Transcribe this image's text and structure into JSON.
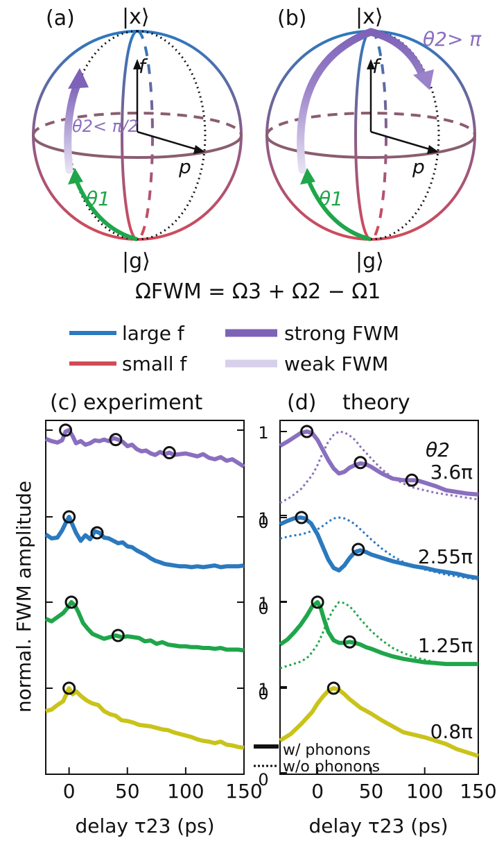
{
  "panels": {
    "a": {
      "label": "(a)",
      "top_state": "|x⟩",
      "bottom_state": "|g⟩",
      "axis_f": "f",
      "axis_p": "p",
      "theta1": "θ1",
      "theta2": "θ2< π/2"
    },
    "b": {
      "label": "(b)",
      "top_state": "|x⟩",
      "bottom_state": "|g⟩",
      "axis_f": "f",
      "axis_p": "p",
      "theta1": "θ1",
      "theta2": "θ2> π"
    },
    "c": {
      "label": "(c)",
      "title": "experiment"
    },
    "d": {
      "label": "(d)",
      "title": "theory"
    }
  },
  "equation": "ΩFWM = Ω3 + Ω2 − Ω1",
  "legend": {
    "large_f": "large f",
    "small_f": "small f",
    "strong": "strong FWM",
    "weak": "weak FWM",
    "with_phonons": "w/ phonons",
    "without_phonons": "w/o phonons",
    "theta2_header": "θ2"
  },
  "colors": {
    "blue": "#2b79bf",
    "red": "#d24a58",
    "purple": "#8a6fbf",
    "purple_light": "#cfc6e6",
    "green": "#1fa64a",
    "yellow": "#c9c31a",
    "axis": "#1a1a1a"
  },
  "chart_data": [
    {
      "type": "line",
      "panel": "c",
      "title": "experiment",
      "xlabel": "delay τ23 (ps)",
      "ylabel": "normal. FWM amplitude",
      "xlim": [
        -20,
        150
      ],
      "xticks": [
        "0",
        "50",
        "100",
        "150"
      ],
      "series": [
        {
          "color": "#8a6fbf",
          "x": [
            -20,
            -15,
            -10,
            -6,
            -3,
            0,
            3,
            6,
            10,
            14,
            18,
            22,
            26,
            30,
            34,
            38,
            42,
            46,
            50,
            54,
            58,
            62,
            66,
            70,
            74,
            78,
            82,
            86,
            90,
            95,
            100,
            105,
            110,
            115,
            120,
            125,
            130,
            135,
            140,
            145,
            150
          ],
          "y": [
            0.88,
            0.85,
            0.83,
            0.86,
            0.98,
            1.0,
            0.92,
            0.82,
            0.85,
            0.8,
            0.82,
            0.86,
            0.85,
            0.87,
            0.85,
            0.89,
            0.87,
            0.84,
            0.78,
            0.8,
            0.74,
            0.71,
            0.72,
            0.68,
            0.66,
            0.7,
            0.67,
            0.69,
            0.66,
            0.67,
            0.68,
            0.66,
            0.64,
            0.67,
            0.62,
            0.6,
            0.63,
            0.58,
            0.6,
            0.55,
            0.5
          ],
          "markers": [
            [
              -3,
              1.0
            ],
            [
              40,
              0.87
            ],
            [
              86,
              0.69
            ]
          ]
        },
        {
          "color": "#2b79bf",
          "x": [
            -20,
            -15,
            -10,
            -6,
            -3,
            0,
            3,
            6,
            10,
            14,
            18,
            22,
            26,
            30,
            34,
            38,
            42,
            46,
            50,
            54,
            58,
            62,
            66,
            70,
            74,
            78,
            82,
            86,
            90,
            95,
            100,
            105,
            110,
            115,
            120,
            125,
            130,
            135,
            140,
            145,
            150
          ],
          "y": [
            0.78,
            0.73,
            0.74,
            0.83,
            0.92,
            1.0,
            0.9,
            0.8,
            0.7,
            0.77,
            0.72,
            0.82,
            0.8,
            0.74,
            0.73,
            0.7,
            0.67,
            0.68,
            0.63,
            0.62,
            0.58,
            0.55,
            0.52,
            0.48,
            0.45,
            0.43,
            0.41,
            0.4,
            0.39,
            0.38,
            0.38,
            0.37,
            0.38,
            0.37,
            0.38,
            0.39,
            0.37,
            0.38,
            0.38,
            0.38,
            0.39
          ],
          "markers": [
            [
              0,
              1.0
            ],
            [
              24,
              0.8
            ]
          ]
        },
        {
          "color": "#1fa64a",
          "x": [
            -20,
            -15,
            -10,
            -5,
            -2,
            2,
            5,
            8,
            12,
            16,
            20,
            25,
            30,
            35,
            40,
            45,
            50,
            55,
            60,
            65,
            70,
            75,
            80,
            85,
            90,
            95,
            100,
            105,
            110,
            115,
            120,
            125,
            130,
            135,
            140,
            145,
            150
          ],
          "y": [
            0.8,
            0.77,
            0.82,
            0.87,
            0.92,
            1.0,
            0.96,
            0.88,
            0.75,
            0.68,
            0.62,
            0.59,
            0.56,
            0.58,
            0.6,
            0.58,
            0.59,
            0.58,
            0.57,
            0.53,
            0.54,
            0.5,
            0.52,
            0.49,
            0.48,
            0.47,
            0.47,
            0.46,
            0.46,
            0.45,
            0.45,
            0.44,
            0.45,
            0.43,
            0.43,
            0.43,
            0.42
          ],
          "markers": [
            [
              2,
              1.0
            ],
            [
              42,
              0.6
            ]
          ]
        },
        {
          "color": "#c9c31a",
          "x": [
            -20,
            -15,
            -10,
            -5,
            0,
            3,
            6,
            10,
            15,
            20,
            25,
            30,
            35,
            40,
            45,
            50,
            55,
            60,
            65,
            70,
            75,
            80,
            85,
            90,
            95,
            100,
            105,
            110,
            115,
            120,
            125,
            130,
            135,
            140,
            145,
            150
          ],
          "y": [
            0.7,
            0.72,
            0.78,
            0.83,
            1.0,
            0.92,
            0.96,
            0.9,
            0.84,
            0.8,
            0.78,
            0.7,
            0.66,
            0.64,
            0.58,
            0.57,
            0.55,
            0.52,
            0.51,
            0.5,
            0.48,
            0.46,
            0.45,
            0.42,
            0.4,
            0.38,
            0.36,
            0.33,
            0.31,
            0.3,
            0.28,
            0.3,
            0.26,
            0.25,
            0.23,
            0.22
          ],
          "markers": [
            [
              0,
              1.0
            ]
          ]
        }
      ]
    },
    {
      "type": "line",
      "panel": "d",
      "title": "theory",
      "xlabel": "delay τ23 (ps)",
      "xlim": [
        -35,
        150
      ],
      "xticks": [
        "0",
        "50",
        "100",
        "150"
      ],
      "yticks": [
        "0",
        "1"
      ],
      "series": [
        {
          "theta2": "3.6π",
          "color": "#8a6fbf",
          "with_phonons": {
            "x": [
              -35,
              -28,
              -22,
              -16,
              -10,
              -5,
              0,
              5,
              10,
              15,
              20,
              25,
              30,
              35,
              40,
              45,
              50,
              55,
              60,
              65,
              70,
              75,
              80,
              85,
              90,
              95,
              100,
              110,
              120,
              130,
              140,
              150
            ],
            "y": [
              0.83,
              0.88,
              0.93,
              0.98,
              1.0,
              0.98,
              0.9,
              0.78,
              0.66,
              0.56,
              0.5,
              0.52,
              0.57,
              0.6,
              0.62,
              0.61,
              0.58,
              0.54,
              0.5,
              0.47,
              0.44,
              0.43,
              0.42,
              0.42,
              0.42,
              0.41,
              0.39,
              0.35,
              0.3,
              0.28,
              0.26,
              0.25
            ],
            "markers": [
              [
                -10,
                1.0
              ],
              [
                40,
                0.63
              ],
              [
                88,
                0.42
              ]
            ]
          },
          "without_phonons": {
            "x": [
              -35,
              -25,
              -15,
              -5,
              0,
              5,
              10,
              15,
              20,
              25,
              30,
              35,
              40,
              50,
              60,
              70,
              80,
              90,
              100,
              110,
              120,
              130,
              140,
              150
            ],
            "y": [
              0.15,
              0.22,
              0.32,
              0.48,
              0.6,
              0.75,
              0.88,
              0.96,
              1.0,
              0.99,
              0.95,
              0.9,
              0.82,
              0.68,
              0.55,
              0.45,
              0.38,
              0.33,
              0.3,
              0.27,
              0.25,
              0.23,
              0.21,
              0.19
            ]
          }
        },
        {
          "theta2": "2.55π",
          "color": "#2b79bf",
          "with_phonons": {
            "x": [
              -35,
              -28,
              -22,
              -16,
              -12,
              -6,
              0,
              5,
              10,
              15,
              20,
              25,
              30,
              35,
              40,
              45,
              50,
              60,
              70,
              80,
              90,
              100,
              110,
              120,
              130,
              140,
              150
            ],
            "y": [
              0.92,
              0.96,
              0.99,
              1.0,
              0.99,
              0.93,
              0.8,
              0.65,
              0.5,
              0.4,
              0.37,
              0.43,
              0.52,
              0.59,
              0.61,
              0.59,
              0.56,
              0.52,
              0.48,
              0.45,
              0.42,
              0.4,
              0.37,
              0.35,
              0.33,
              0.3,
              0.28
            ],
            "markers": [
              [
                -15,
                1.0
              ],
              [
                38,
                0.62
              ]
            ]
          },
          "without_phonons": {
            "x": [
              -35,
              -25,
              -15,
              -5,
              0,
              5,
              10,
              15,
              20,
              25,
              30,
              35,
              40,
              50,
              60,
              70,
              80,
              90,
              100,
              110,
              120,
              130,
              140,
              150
            ],
            "y": [
              0.75,
              0.78,
              0.8,
              0.84,
              0.86,
              0.9,
              0.95,
              0.99,
              1.0,
              0.99,
              0.96,
              0.92,
              0.86,
              0.74,
              0.63,
              0.54,
              0.47,
              0.42,
              0.38,
              0.35,
              0.32,
              0.3,
              0.28,
              0.26
            ]
          }
        },
        {
          "theta2": "1.25π",
          "color": "#1fa64a",
          "with_phonons": {
            "x": [
              -35,
              -28,
              -22,
              -16,
              -10,
              -5,
              0,
              3,
              6,
              10,
              15,
              20,
              25,
              30,
              35,
              40,
              45,
              50,
              60,
              70,
              80,
              90,
              100,
              110,
              120,
              130,
              140,
              150
            ],
            "y": [
              0.5,
              0.56,
              0.64,
              0.73,
              0.84,
              0.95,
              1.0,
              0.93,
              0.8,
              0.65,
              0.55,
              0.52,
              0.52,
              0.53,
              0.52,
              0.5,
              0.47,
              0.45,
              0.4,
              0.36,
              0.33,
              0.31,
              0.29,
              0.28,
              0.27,
              0.27,
              0.27,
              0.27
            ],
            "markers": [
              [
                0,
                1.0
              ],
              [
                30,
                0.53
              ]
            ]
          },
          "without_phonons": {
            "x": [
              -35,
              -25,
              -15,
              -8,
              0,
              5,
              10,
              15,
              20,
              25,
              30,
              35,
              40,
              50,
              60,
              70,
              80,
              90,
              100,
              110,
              120,
              130
            ],
            "y": [
              0.22,
              0.26,
              0.3,
              0.36,
              0.5,
              0.64,
              0.8,
              0.92,
              1.0,
              0.99,
              0.95,
              0.88,
              0.8,
              0.66,
              0.55,
              0.46,
              0.4,
              0.35,
              0.32,
              0.29,
              0.27,
              0.26
            ]
          }
        },
        {
          "theta2": "0.8π",
          "color": "#c9c31a",
          "with_phonons": {
            "x": [
              -35,
              -25,
              -15,
              -5,
              0,
              5,
              10,
              15,
              20,
              25,
              30,
              35,
              40,
              50,
              60,
              70,
              80,
              90,
              100,
              110,
              120,
              130,
              140,
              150
            ],
            "y": [
              0.38,
              0.46,
              0.58,
              0.72,
              0.82,
              0.9,
              0.97,
              1.0,
              0.98,
              0.93,
              0.87,
              0.82,
              0.77,
              0.7,
              0.62,
              0.55,
              0.48,
              0.45,
              0.42,
              0.38,
              0.34,
              0.28,
              0.24,
              0.2
            ],
            "markers": [
              [
                15,
                1.0
              ]
            ]
          }
        }
      ]
    }
  ]
}
